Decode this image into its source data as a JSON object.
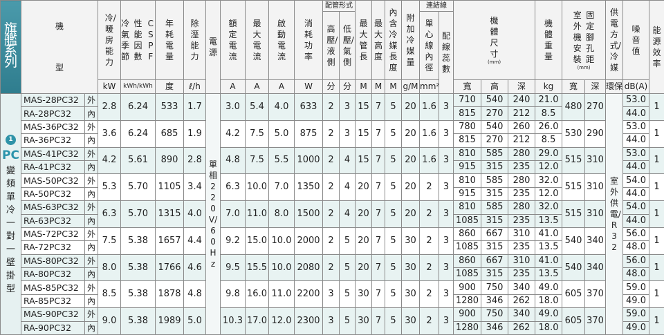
{
  "header": {
    "series": "旗艦系列",
    "model": [
      "機",
      "型"
    ],
    "capacity": "冷/暖房能力",
    "cspf": [
      "冷氣季節",
      "性能因數",
      "CSPF"
    ],
    "annual": "年耗電量",
    "dehumid": "除溼能力",
    "power": "電源",
    "rated_current": "額定電流",
    "max_current": "最大電流",
    "start_current": "啟動電流",
    "power_consumption": "消耗功率",
    "piping": "配管形式",
    "high_side": "高壓/液側",
    "low_side": "低壓/氣側",
    "max_pipe": "最大管長",
    "max_height": "最大高度",
    "refrig_len": "內含冷媒長度",
    "extra_refrig": "附加冷媒量",
    "wiring": "連結線",
    "core_dia": "單心線內徑",
    "wire_count": "配線蕊數",
    "dimension": "機體尺寸",
    "dim_unit": "(mm)",
    "weight": "機體重量",
    "mount": [
      "室外機安裝",
      "固定腳孔距"
    ],
    "mount_unit": "(mm)",
    "supply": "供電方式/冷媒",
    "noise": "噪音值",
    "efficiency": "能源效率"
  },
  "units": [
    "kW",
    "kWh/kWh",
    "度",
    "ℓ/h",
    "A",
    "A",
    "A",
    "W",
    "分",
    "分",
    "M",
    "M",
    "M",
    "g/M",
    "mm²",
    "寬",
    "高",
    "深",
    "kg",
    "寬",
    "深",
    "環保",
    "dB(A)"
  ],
  "side": {
    "badge": "1",
    "brand": "PC",
    "desc": "變頻單冷一對一壁掛型"
  },
  "power_spec": "單相220V/60Hz",
  "supply_spec": "室外供電/R32",
  "unit_tags": [
    "外",
    "內"
  ],
  "rows": [
    {
      "out": "MAS-28PC32",
      "in": "RA-28PC32",
      "cap": "2.8",
      "cspf": "6.24",
      "annual": "533",
      "dehum": "1.7",
      "rated": "3.0",
      "max": "5.4",
      "start": "4.0",
      "watt": "633",
      "hi": "2",
      "lo": "3",
      "pipe": "15",
      "height": "7",
      "rlen": "5",
      "extra": "20",
      "core": "1.6",
      "wires": "3",
      "w": [
        "710",
        "815"
      ],
      "h": [
        "540",
        "270"
      ],
      "d": [
        "240",
        "212"
      ],
      "kg": [
        "21.0",
        "8.5"
      ],
      "mw": "480",
      "md": "270",
      "db": [
        "53.0",
        "44.0"
      ],
      "eff": "1"
    },
    {
      "out": "MAS-36PC32",
      "in": "RA-36PC32",
      "cap": "3.6",
      "cspf": "6.24",
      "annual": "685",
      "dehum": "1.9",
      "rated": "4.2",
      "max": "7.5",
      "start": "5.0",
      "watt": "875",
      "hi": "2",
      "lo": "3",
      "pipe": "15",
      "height": "7",
      "rlen": "5",
      "extra": "20",
      "core": "1.6",
      "wires": "3",
      "w": [
        "780",
        "815"
      ],
      "h": [
        "540",
        "270"
      ],
      "d": [
        "260",
        "212"
      ],
      "kg": [
        "26.0",
        "8.5"
      ],
      "mw": "530",
      "md": "290",
      "db": [
        "53.0",
        "44.0"
      ],
      "eff": "1"
    },
    {
      "out": "MAS-41PC32",
      "in": "RA-41PC32",
      "cap": "4.2",
      "cspf": "5.61",
      "annual": "890",
      "dehum": "2.8",
      "rated": "4.8",
      "max": "7.5",
      "start": "5.5",
      "watt": "1000",
      "hi": "2",
      "lo": "4",
      "pipe": "15",
      "height": "7",
      "rlen": "5",
      "extra": "20",
      "core": "1.6",
      "wires": "3",
      "w": [
        "810",
        "915"
      ],
      "h": [
        "585",
        "315"
      ],
      "d": [
        "280",
        "235"
      ],
      "kg": [
        "29.0",
        "12.0"
      ],
      "mw": "515",
      "md": "310",
      "db": [
        "53.0",
        "44.0"
      ],
      "eff": "1"
    },
    {
      "out": "MAS-50PC32",
      "in": "RA-50PC32",
      "cap": "5.3",
      "cspf": "5.70",
      "annual": "1105",
      "dehum": "3.4",
      "rated": "6.3",
      "max": "10.0",
      "start": "7.0",
      "watt": "1350",
      "hi": "2",
      "lo": "4",
      "pipe": "20",
      "height": "7",
      "rlen": "5",
      "extra": "20",
      "core": "2",
      "wires": "3",
      "w": [
        "810",
        "915"
      ],
      "h": [
        "585",
        "315"
      ],
      "d": [
        "280",
        "235"
      ],
      "kg": [
        "32.0",
        "12.0"
      ],
      "mw": "515",
      "md": "310",
      "db": [
        "54.0",
        "44.0"
      ],
      "eff": "1"
    },
    {
      "out": "MAS-63PC32",
      "in": "RA-63PC32",
      "cap": "6.3",
      "cspf": "5.70",
      "annual": "1315",
      "dehum": "4.0",
      "rated": "7.0",
      "max": "11.0",
      "start": "8.0",
      "watt": "1500",
      "hi": "2",
      "lo": "4",
      "pipe": "20",
      "height": "7",
      "rlen": "5",
      "extra": "20",
      "core": "2",
      "wires": "3",
      "w": [
        "810",
        "1085"
      ],
      "h": [
        "585",
        "315"
      ],
      "d": [
        "280",
        "235"
      ],
      "kg": [
        "32.0",
        "13.5"
      ],
      "mw": "515",
      "md": "310",
      "db": [
        "54.0",
        "44.0"
      ],
      "eff": "1"
    },
    {
      "out": "MAS-72PC32",
      "in": "RA-72PC32",
      "cap": "7.5",
      "cspf": "5.38",
      "annual": "1657",
      "dehum": "4.4",
      "rated": "9.2",
      "max": "15.0",
      "start": "10.0",
      "watt": "2000",
      "hi": "2",
      "lo": "5",
      "pipe": "20",
      "height": "7",
      "rlen": "5",
      "extra": "30",
      "core": "2",
      "wires": "3",
      "w": [
        "860",
        "1085"
      ],
      "h": [
        "667",
        "315"
      ],
      "d": [
        "310",
        "235"
      ],
      "kg": [
        "41.0",
        "13.5"
      ],
      "mw": "540",
      "md": "340",
      "db": [
        "56.0",
        "48.0"
      ],
      "eff": "1"
    },
    {
      "out": "MAS-80PC32",
      "in": "RA-80PC32",
      "cap": "8.0",
      "cspf": "5.38",
      "annual": "1766",
      "dehum": "4.6",
      "rated": "9.5",
      "max": "15.5",
      "start": "10.0",
      "watt": "2080",
      "hi": "2",
      "lo": "5",
      "pipe": "20",
      "height": "7",
      "rlen": "5",
      "extra": "30",
      "core": "2",
      "wires": "3",
      "w": [
        "860",
        "1085"
      ],
      "h": [
        "667",
        "315"
      ],
      "d": [
        "310",
        "235"
      ],
      "kg": [
        "41.0",
        "13.5"
      ],
      "mw": "540",
      "md": "340",
      "db": [
        "56.0",
        "48.0"
      ],
      "eff": "1"
    },
    {
      "out": "MAS-85PC32",
      "in": "RA-85PC32",
      "cap": "8.5",
      "cspf": "5.38",
      "annual": "1878",
      "dehum": "4.8",
      "rated": "9.8",
      "max": "16.0",
      "start": "11.0",
      "watt": "2200",
      "hi": "3",
      "lo": "5",
      "pipe": "30",
      "height": "7",
      "rlen": "5",
      "extra": "30",
      "core": "2",
      "wires": "3",
      "w": [
        "900",
        "1280"
      ],
      "h": [
        "750",
        "346"
      ],
      "d": [
        "340",
        "262"
      ],
      "kg": [
        "49.0",
        "18.0"
      ],
      "mw": "605",
      "md": "370",
      "db": [
        "59.0",
        "49.0"
      ],
      "eff": "1"
    },
    {
      "out": "MAS-90PC32",
      "in": "RA-90PC32",
      "cap": "9.0",
      "cspf": "5.38",
      "annual": "1989",
      "dehum": "5.0",
      "rated": "10.3",
      "max": "17.0",
      "start": "12.0",
      "watt": "2300",
      "hi": "3",
      "lo": "5",
      "pipe": "30",
      "height": "7",
      "rlen": "5",
      "extra": "30",
      "core": "2",
      "wires": "3",
      "w": [
        "900",
        "1280"
      ],
      "h": [
        "750",
        "346"
      ],
      "d": [
        "340",
        "262"
      ],
      "kg": [
        "49.0",
        "18.0"
      ],
      "mw": "605",
      "md": "370",
      "db": [
        "59.0",
        "49.0"
      ],
      "eff": "1"
    }
  ]
}
